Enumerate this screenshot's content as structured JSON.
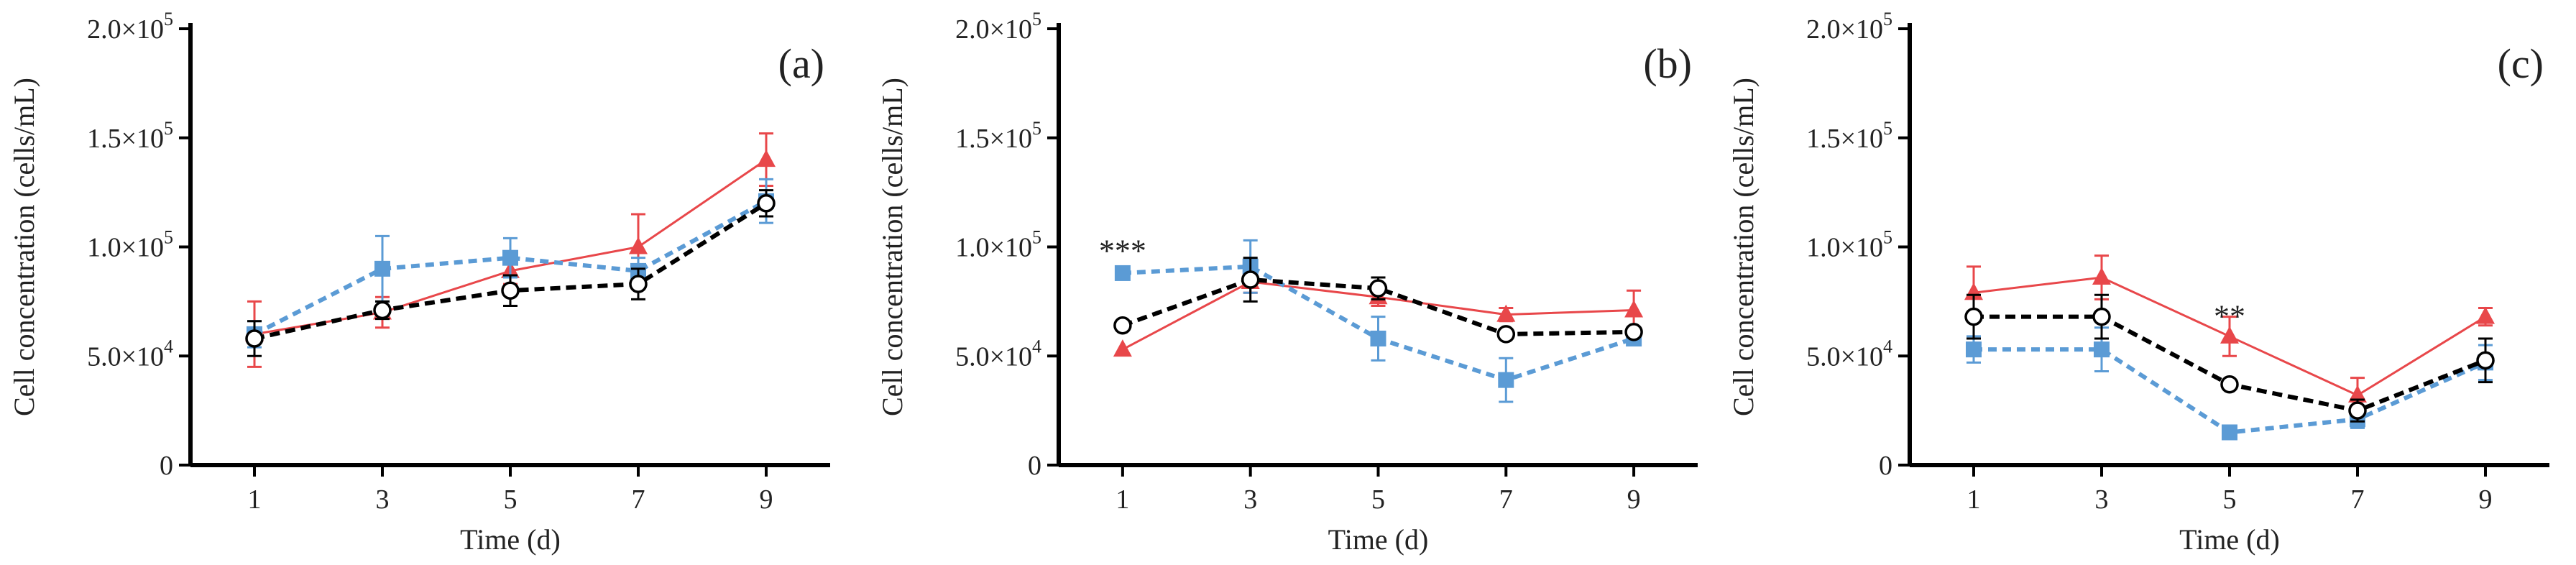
{
  "colors": {
    "red": "#e8474a",
    "blue": "#5b9bd5",
    "black": "#000000",
    "axis": "#000000"
  },
  "chart_data": [
    {
      "panel": "(a)",
      "type": "line",
      "xlabel": "Time (d)",
      "ylabel": "Cell concentration (cells/mL)",
      "x": [
        1,
        3,
        5,
        7,
        9
      ],
      "xlim": [
        0,
        10
      ],
      "ylim": [
        0,
        200000
      ],
      "yticks": [
        {
          "value": 0,
          "mantissa": "0",
          "times": "",
          "exponent": ""
        },
        {
          "value": 50000,
          "mantissa": "5.0",
          "times": "×10",
          "exponent": "4"
        },
        {
          "value": 100000,
          "mantissa": "1.0",
          "times": "×10",
          "exponent": "5"
        },
        {
          "value": 150000,
          "mantissa": "1.5",
          "times": "×10",
          "exponent": "5"
        },
        {
          "value": 200000,
          "mantissa": "2.0",
          "times": "×10",
          "exponent": "5"
        }
      ],
      "xticks": [
        "1",
        "3",
        "5",
        "7",
        "9"
      ],
      "series": [
        {
          "name": "red triangle",
          "marker": "triangle",
          "line": "solid",
          "color": "#e8474a",
          "values": [
            60000,
            70000,
            89000,
            100000,
            140000
          ],
          "errors": [
            15000,
            7000,
            6000,
            15000,
            12000
          ]
        },
        {
          "name": "blue square",
          "marker": "square",
          "line": "dashed",
          "color": "#5b9bd5",
          "values": [
            60000,
            90000,
            95000,
            89000,
            121000
          ],
          "errors": [
            6000,
            15000,
            9000,
            6000,
            10000
          ]
        },
        {
          "name": "black circle",
          "marker": "circle",
          "line": "dashed",
          "color": "#000000",
          "values": [
            58000,
            71000,
            80000,
            83000,
            120000
          ],
          "errors": [
            8000,
            4000,
            7000,
            7000,
            6000
          ]
        }
      ],
      "annotations": []
    },
    {
      "panel": "(b)",
      "type": "line",
      "xlabel": "Time (d)",
      "ylabel": "Cell concentration (cells/mL)",
      "x": [
        1,
        3,
        5,
        7,
        9
      ],
      "xlim": [
        0,
        10
      ],
      "ylim": [
        0,
        200000
      ],
      "yticks": [
        {
          "value": 0,
          "mantissa": "0",
          "times": "",
          "exponent": ""
        },
        {
          "value": 50000,
          "mantissa": "5.0",
          "times": "×10",
          "exponent": "4"
        },
        {
          "value": 100000,
          "mantissa": "1.0",
          "times": "×10",
          "exponent": "5"
        },
        {
          "value": 150000,
          "mantissa": "1.5",
          "times": "×10",
          "exponent": "5"
        },
        {
          "value": 200000,
          "mantissa": "2.0",
          "times": "×10",
          "exponent": "5"
        }
      ],
      "xticks": [
        "1",
        "3",
        "5",
        "7",
        "9"
      ],
      "series": [
        {
          "name": "red triangle",
          "marker": "triangle",
          "line": "solid",
          "color": "#e8474a",
          "values": [
            53000,
            84000,
            77000,
            69000,
            71000
          ],
          "errors": [
            0,
            5000,
            4000,
            3000,
            9000
          ]
        },
        {
          "name": "blue square",
          "marker": "square",
          "line": "dashed",
          "color": "#5b9bd5",
          "values": [
            88000,
            91000,
            58000,
            39000,
            58000
          ],
          "errors": [
            2000,
            12000,
            10000,
            10000,
            3000
          ]
        },
        {
          "name": "black circle",
          "marker": "circle",
          "line": "dashed",
          "color": "#000000",
          "values": [
            64000,
            85000,
            81000,
            60000,
            61000
          ],
          "errors": [
            2000,
            10000,
            5000,
            2000,
            2000
          ]
        }
      ],
      "annotations": [
        {
          "text": "***",
          "x": 1,
          "y": 100000
        }
      ]
    },
    {
      "panel": "(c)",
      "type": "line",
      "xlabel": "Time (d)",
      "ylabel": "Cell concentration (cells/mL)",
      "x": [
        1,
        3,
        5,
        7,
        9
      ],
      "xlim": [
        0,
        10
      ],
      "ylim": [
        0,
        200000
      ],
      "yticks": [
        {
          "value": 0,
          "mantissa": "0",
          "times": "",
          "exponent": ""
        },
        {
          "value": 50000,
          "mantissa": "5.0",
          "times": "×10",
          "exponent": "4"
        },
        {
          "value": 100000,
          "mantissa": "1.0",
          "times": "×10",
          "exponent": "5"
        },
        {
          "value": 150000,
          "mantissa": "1.5",
          "times": "×10",
          "exponent": "5"
        },
        {
          "value": 200000,
          "mantissa": "2.0",
          "times": "×10",
          "exponent": "5"
        }
      ],
      "xticks": [
        "1",
        "3",
        "5",
        "7",
        "9"
      ],
      "series": [
        {
          "name": "red triangle",
          "marker": "triangle",
          "line": "solid",
          "color": "#e8474a",
          "values": [
            79000,
            86000,
            59000,
            32000,
            68000
          ],
          "errors": [
            12000,
            10000,
            9000,
            8000,
            4000
          ]
        },
        {
          "name": "blue square",
          "marker": "square",
          "line": "dashed",
          "color": "#5b9bd5",
          "values": [
            53000,
            53000,
            15000,
            21000,
            47000
          ],
          "errors": [
            6000,
            10000,
            0,
            4000,
            8000
          ]
        },
        {
          "name": "black circle",
          "marker": "circle",
          "line": "dashed",
          "color": "#000000",
          "values": [
            68000,
            68000,
            37000,
            25000,
            48000
          ],
          "errors": [
            10000,
            10000,
            0,
            5000,
            10000
          ]
        }
      ],
      "annotations": [
        {
          "text": "**",
          "x": 5,
          "y": 70000
        }
      ]
    }
  ]
}
